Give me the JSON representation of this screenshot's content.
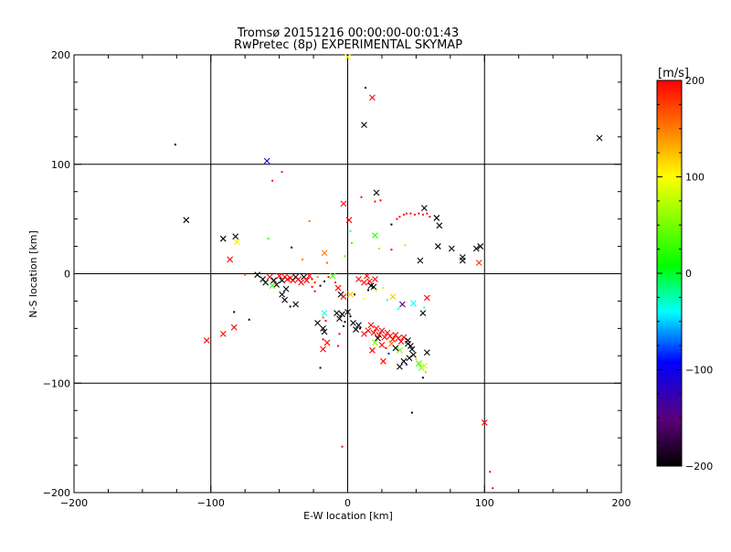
{
  "chart_data": {
    "type": "scatter",
    "title": "Tromsø 20151216 00:00:00-00:01:43",
    "subtitle": "RwPretec (8p) EXPERIMENTAL SKYMAP",
    "xlabel": "E-W location [km]",
    "ylabel": "N-S location [km]",
    "xlim": [
      -200,
      200
    ],
    "ylim": [
      -200,
      200
    ],
    "xticks": [
      -200,
      -100,
      0,
      100,
      200
    ],
    "yticks": [
      -200,
      -100,
      0,
      100,
      200
    ],
    "grid": true,
    "colorbar": {
      "label": "[m/s]",
      "range": [
        -200,
        200
      ],
      "ticks": [
        200,
        100,
        0,
        -100,
        -200
      ],
      "colormap": "black-purple-blue-cyan-green-yellow-orange-red"
    },
    "points": [
      {
        "x": 0,
        "y": 198,
        "v": 100,
        "m": "x"
      },
      {
        "x": 13,
        "y": 170,
        "v": -200,
        "m": "d"
      },
      {
        "x": 18,
        "y": 161,
        "v": 200,
        "m": "x"
      },
      {
        "x": 12,
        "y": 136,
        "v": -200,
        "m": "x"
      },
      {
        "x": -126,
        "y": 118,
        "v": -200,
        "m": "d"
      },
      {
        "x": 184,
        "y": 124,
        "v": -200,
        "m": "x"
      },
      {
        "x": -59,
        "y": 103,
        "v": -120,
        "m": "x"
      },
      {
        "x": -48,
        "y": 93,
        "v": 190,
        "m": "d"
      },
      {
        "x": -55,
        "y": 85,
        "v": 190,
        "m": "d"
      },
      {
        "x": -118,
        "y": 49,
        "v": -200,
        "m": "x"
      },
      {
        "x": -3,
        "y": 64,
        "v": 200,
        "m": "x"
      },
      {
        "x": 10,
        "y": 70,
        "v": 200,
        "m": "d"
      },
      {
        "x": 21,
        "y": 74,
        "v": -200,
        "m": "x"
      },
      {
        "x": 24,
        "y": 67,
        "v": 200,
        "m": "d"
      },
      {
        "x": 20,
        "y": 66,
        "v": 200,
        "m": "d"
      },
      {
        "x": 1,
        "y": 49,
        "v": 200,
        "m": "x"
      },
      {
        "x": -28,
        "y": 48,
        "v": 150,
        "m": "d"
      },
      {
        "x": 56,
        "y": 60,
        "v": -200,
        "m": "x"
      },
      {
        "x": 65,
        "y": 51,
        "v": -200,
        "m": "x"
      },
      {
        "x": 67,
        "y": 44,
        "v": -200,
        "m": "x"
      },
      {
        "x": 32,
        "y": 45,
        "v": -200,
        "m": "d"
      },
      {
        "x": 36,
        "y": 50,
        "v": 200,
        "m": "d"
      },
      {
        "x": 38,
        "y": 52,
        "v": 200,
        "m": "d"
      },
      {
        "x": 41,
        "y": 54,
        "v": 200,
        "m": "d"
      },
      {
        "x": 43,
        "y": 55,
        "v": 200,
        "m": "d"
      },
      {
        "x": 46,
        "y": 55,
        "v": 200,
        "m": "d"
      },
      {
        "x": 49,
        "y": 54,
        "v": 200,
        "m": "d"
      },
      {
        "x": 52,
        "y": 55,
        "v": 200,
        "m": "d"
      },
      {
        "x": 55,
        "y": 54,
        "v": 200,
        "m": "d"
      },
      {
        "x": 58,
        "y": 55,
        "v": 200,
        "m": "d"
      },
      {
        "x": 60,
        "y": 52,
        "v": 200,
        "m": "d"
      },
      {
        "x": -91,
        "y": 32,
        "v": -200,
        "m": "x"
      },
      {
        "x": -82,
        "y": 34,
        "v": -200,
        "m": "x"
      },
      {
        "x": -81,
        "y": 29,
        "v": 110,
        "m": "x"
      },
      {
        "x": -58,
        "y": 32,
        "v": 30,
        "m": "d"
      },
      {
        "x": -41,
        "y": 24,
        "v": -200,
        "m": "d"
      },
      {
        "x": 20,
        "y": 35,
        "v": 20,
        "m": "x"
      },
      {
        "x": 2,
        "y": 39,
        "v": -30,
        "m": "d"
      },
      {
        "x": 3,
        "y": 28,
        "v": 30,
        "m": "d"
      },
      {
        "x": 23,
        "y": 23,
        "v": 60,
        "m": "d"
      },
      {
        "x": 32,
        "y": 22,
        "v": 200,
        "m": "d"
      },
      {
        "x": 42,
        "y": 26,
        "v": 120,
        "m": "d"
      },
      {
        "x": 66,
        "y": 25,
        "v": -200,
        "m": "x"
      },
      {
        "x": 76,
        "y": 23,
        "v": -200,
        "m": "x"
      },
      {
        "x": 84,
        "y": 15,
        "v": -200,
        "m": "x"
      },
      {
        "x": 84,
        "y": 12,
        "v": -200,
        "m": "x"
      },
      {
        "x": 94,
        "y": 23,
        "v": -200,
        "m": "x"
      },
      {
        "x": 97,
        "y": 25,
        "v": -200,
        "m": "x"
      },
      {
        "x": 96,
        "y": 10,
        "v": 180,
        "m": "x"
      },
      {
        "x": 53,
        "y": 12,
        "v": -200,
        "m": "x"
      },
      {
        "x": -17,
        "y": 19,
        "v": 150,
        "m": "x"
      },
      {
        "x": -33,
        "y": 13,
        "v": 150,
        "m": "d"
      },
      {
        "x": -15,
        "y": 10,
        "v": 160,
        "m": "d"
      },
      {
        "x": -2,
        "y": 16,
        "v": 40,
        "m": "d"
      },
      {
        "x": -86,
        "y": 13,
        "v": 200,
        "m": "x"
      },
      {
        "x": -75,
        "y": -1,
        "v": 160,
        "m": "d"
      },
      {
        "x": -66,
        "y": -1,
        "v": -200,
        "m": "x"
      },
      {
        "x": -62,
        "y": -5,
        "v": -200,
        "m": "x"
      },
      {
        "x": -60,
        "y": -8,
        "v": -200,
        "m": "x"
      },
      {
        "x": -57,
        "y": -3,
        "v": 200,
        "m": "x"
      },
      {
        "x": -54,
        "y": -6,
        "v": -200,
        "m": "x"
      },
      {
        "x": -52,
        "y": -10,
        "v": -200,
        "m": "x"
      },
      {
        "x": -50,
        "y": -2,
        "v": 200,
        "m": "x"
      },
      {
        "x": -48,
        "y": -6,
        "v": -200,
        "m": "x"
      },
      {
        "x": -46,
        "y": -3,
        "v": 200,
        "m": "x"
      },
      {
        "x": -44,
        "y": -5,
        "v": 200,
        "m": "x"
      },
      {
        "x": -42,
        "y": -4,
        "v": 200,
        "m": "x"
      },
      {
        "x": -40,
        "y": -6,
        "v": 200,
        "m": "x"
      },
      {
        "x": -38,
        "y": -3,
        "v": -200,
        "m": "x"
      },
      {
        "x": -36,
        "y": -5,
        "v": 200,
        "m": "x"
      },
      {
        "x": -34,
        "y": -8,
        "v": 200,
        "m": "x"
      },
      {
        "x": -32,
        "y": -3,
        "v": -200,
        "m": "x"
      },
      {
        "x": -30,
        "y": -6,
        "v": 200,
        "m": "x"
      },
      {
        "x": -28,
        "y": -2,
        "v": 200,
        "m": "x"
      },
      {
        "x": -26,
        "y": -5,
        "v": 200,
        "m": "d"
      },
      {
        "x": -24,
        "y": -8,
        "v": 200,
        "m": "d"
      },
      {
        "x": -22,
        "y": -3,
        "v": 150,
        "m": "d"
      },
      {
        "x": -20,
        "y": -11,
        "v": -200,
        "m": "d"
      },
      {
        "x": -17,
        "y": -7,
        "v": -200,
        "m": "d"
      },
      {
        "x": -14,
        "y": -3,
        "v": 200,
        "m": "d"
      },
      {
        "x": -55,
        "y": -11,
        "v": 30,
        "m": "x"
      },
      {
        "x": -45,
        "y": -14,
        "v": -200,
        "m": "x"
      },
      {
        "x": -48,
        "y": -19,
        "v": -200,
        "m": "x"
      },
      {
        "x": -46,
        "y": -24,
        "v": -200,
        "m": "x"
      },
      {
        "x": -38,
        "y": -28,
        "v": -200,
        "m": "x"
      },
      {
        "x": -42,
        "y": -30,
        "v": -200,
        "m": "d"
      },
      {
        "x": -26,
        "y": -12,
        "v": 200,
        "m": "d"
      },
      {
        "x": -24,
        "y": -16,
        "v": 200,
        "m": "d"
      },
      {
        "x": -11,
        "y": -2,
        "v": 30,
        "m": "x"
      },
      {
        "x": -9,
        "y": -8,
        "v": 200,
        "m": "d"
      },
      {
        "x": -7,
        "y": -13,
        "v": 200,
        "m": "x"
      },
      {
        "x": -5,
        "y": -19,
        "v": -200,
        "m": "x"
      },
      {
        "x": -3,
        "y": -21,
        "v": 200,
        "m": "x"
      },
      {
        "x": 2,
        "y": -19,
        "v": 120,
        "m": "x"
      },
      {
        "x": 5,
        "y": -19,
        "v": -200,
        "m": "d"
      },
      {
        "x": 8,
        "y": -5,
        "v": 200,
        "m": "x"
      },
      {
        "x": 12,
        "y": -8,
        "v": 200,
        "m": "x"
      },
      {
        "x": 14,
        "y": -2,
        "v": 200,
        "m": "x"
      },
      {
        "x": 16,
        "y": -7,
        "v": 200,
        "m": "x"
      },
      {
        "x": 17,
        "y": -11,
        "v": -200,
        "m": "x"
      },
      {
        "x": 19,
        "y": -12,
        "v": -200,
        "m": "x"
      },
      {
        "x": 20,
        "y": -5,
        "v": 200,
        "m": "x"
      },
      {
        "x": 15,
        "y": -15,
        "v": -200,
        "m": "d"
      },
      {
        "x": 21,
        "y": -16,
        "v": 100,
        "m": "d"
      },
      {
        "x": 12,
        "y": -23,
        "v": 100,
        "m": "d"
      },
      {
        "x": 26,
        "y": -13,
        "v": 80,
        "m": "d"
      },
      {
        "x": 33,
        "y": -21,
        "v": 120,
        "m": "x"
      },
      {
        "x": 40,
        "y": -28,
        "v": -150,
        "m": "x"
      },
      {
        "x": 48,
        "y": -27,
        "v": -40,
        "m": "x"
      },
      {
        "x": 55,
        "y": -36,
        "v": -200,
        "m": "x"
      },
      {
        "x": 58,
        "y": -22,
        "v": 200,
        "m": "x"
      },
      {
        "x": 37,
        "y": -32,
        "v": -40,
        "m": "d"
      },
      {
        "x": 29,
        "y": -24,
        "v": -40,
        "m": "d"
      },
      {
        "x": 56,
        "y": -31,
        "v": -40,
        "m": "d"
      },
      {
        "x": -17,
        "y": -36,
        "v": -40,
        "m": "x"
      },
      {
        "x": -18,
        "y": -40,
        "v": 160,
        "m": "d"
      },
      {
        "x": -22,
        "y": -45,
        "v": -200,
        "m": "x"
      },
      {
        "x": -18,
        "y": -50,
        "v": -200,
        "m": "x"
      },
      {
        "x": -16,
        "y": -43,
        "v": 200,
        "m": "d"
      },
      {
        "x": -8,
        "y": -36,
        "v": -200,
        "m": "x"
      },
      {
        "x": -6,
        "y": -41,
        "v": -200,
        "m": "x"
      },
      {
        "x": -4,
        "y": -37,
        "v": -200,
        "m": "x"
      },
      {
        "x": -2,
        "y": -44,
        "v": -200,
        "m": "d"
      },
      {
        "x": 0,
        "y": -35,
        "v": -200,
        "m": "x"
      },
      {
        "x": 2,
        "y": -39,
        "v": -200,
        "m": "d"
      },
      {
        "x": 4,
        "y": -45,
        "v": -200,
        "m": "x"
      },
      {
        "x": 6,
        "y": -51,
        "v": -200,
        "m": "x"
      },
      {
        "x": 8,
        "y": -47,
        "v": -200,
        "m": "x"
      },
      {
        "x": -3,
        "y": -48,
        "v": -200,
        "m": "d"
      },
      {
        "x": -6,
        "y": -55,
        "v": 200,
        "m": "d"
      },
      {
        "x": -17,
        "y": -53,
        "v": -200,
        "m": "x"
      },
      {
        "x": -18,
        "y": -60,
        "v": 200,
        "m": "d"
      },
      {
        "x": -15,
        "y": -63,
        "v": 200,
        "m": "x"
      },
      {
        "x": -18,
        "y": -69,
        "v": 200,
        "m": "x"
      },
      {
        "x": -7,
        "y": -66,
        "v": 200,
        "m": "d"
      },
      {
        "x": 9,
        "y": -50,
        "v": -200,
        "m": "d"
      },
      {
        "x": 12,
        "y": -55,
        "v": 200,
        "m": "x"
      },
      {
        "x": 15,
        "y": -52,
        "v": 200,
        "m": "x"
      },
      {
        "x": 17,
        "y": -47,
        "v": 200,
        "m": "x"
      },
      {
        "x": 19,
        "y": -54,
        "v": 200,
        "m": "x"
      },
      {
        "x": 21,
        "y": -50,
        "v": 200,
        "m": "x"
      },
      {
        "x": 23,
        "y": -56,
        "v": 200,
        "m": "x"
      },
      {
        "x": 25,
        "y": -52,
        "v": 200,
        "m": "x"
      },
      {
        "x": 27,
        "y": -58,
        "v": 200,
        "m": "x"
      },
      {
        "x": 29,
        "y": -54,
        "v": 200,
        "m": "x"
      },
      {
        "x": 31,
        "y": -57,
        "v": 200,
        "m": "x"
      },
      {
        "x": 33,
        "y": -60,
        "v": 200,
        "m": "x"
      },
      {
        "x": 35,
        "y": -56,
        "v": 200,
        "m": "x"
      },
      {
        "x": 37,
        "y": -59,
        "v": 200,
        "m": "x"
      },
      {
        "x": 39,
        "y": -62,
        "v": 200,
        "m": "x"
      },
      {
        "x": 41,
        "y": -58,
        "v": 200,
        "m": "x"
      },
      {
        "x": 22,
        "y": -59,
        "v": -200,
        "m": "x"
      },
      {
        "x": 20,
        "y": -63,
        "v": 60,
        "m": "x"
      },
      {
        "x": 25,
        "y": -65,
        "v": 200,
        "m": "x"
      },
      {
        "x": 28,
        "y": -68,
        "v": 200,
        "m": "d"
      },
      {
        "x": 32,
        "y": -64,
        "v": 150,
        "m": "x"
      },
      {
        "x": 35,
        "y": -68,
        "v": -200,
        "m": "x"
      },
      {
        "x": 38,
        "y": -70,
        "v": 50,
        "m": "x"
      },
      {
        "x": 18,
        "y": -70,
        "v": 200,
        "m": "x"
      },
      {
        "x": 44,
        "y": -61,
        "v": -200,
        "m": "x"
      },
      {
        "x": 44,
        "y": -64,
        "v": -200,
        "m": "x"
      },
      {
        "x": 46,
        "y": -66,
        "v": -200,
        "m": "x"
      },
      {
        "x": 47,
        "y": -69,
        "v": -200,
        "m": "x"
      },
      {
        "x": 48,
        "y": -74,
        "v": -200,
        "m": "x"
      },
      {
        "x": 45,
        "y": -77,
        "v": -200,
        "m": "x"
      },
      {
        "x": 41,
        "y": -80,
        "v": -200,
        "m": "x"
      },
      {
        "x": 38,
        "y": -85,
        "v": -200,
        "m": "x"
      },
      {
        "x": 50,
        "y": -78,
        "v": 120,
        "m": "d"
      },
      {
        "x": 52,
        "y": -82,
        "v": 30,
        "m": "x"
      },
      {
        "x": 54,
        "y": -86,
        "v": 50,
        "m": "x"
      },
      {
        "x": 56,
        "y": -84,
        "v": 80,
        "m": "x"
      },
      {
        "x": 57,
        "y": -90,
        "v": 130,
        "m": "d"
      },
      {
        "x": 55,
        "y": -95,
        "v": -200,
        "m": "d"
      },
      {
        "x": 58,
        "y": -72,
        "v": -200,
        "m": "x"
      },
      {
        "x": 30,
        "y": -73,
        "v": -100,
        "m": "d"
      },
      {
        "x": 26,
        "y": -80,
        "v": 200,
        "m": "x"
      },
      {
        "x": 43,
        "y": -83,
        "v": -100,
        "m": "d"
      },
      {
        "x": -20,
        "y": -86,
        "v": -200,
        "m": "d"
      },
      {
        "x": -83,
        "y": -35,
        "v": -200,
        "m": "d"
      },
      {
        "x": -91,
        "y": -55,
        "v": 200,
        "m": "x"
      },
      {
        "x": -83,
        "y": -49,
        "v": 200,
        "m": "x"
      },
      {
        "x": -103,
        "y": -61,
        "v": 200,
        "m": "x"
      },
      {
        "x": -72,
        "y": -42,
        "v": -200,
        "m": "d"
      },
      {
        "x": 47,
        "y": -127,
        "v": -200,
        "m": "d"
      },
      {
        "x": -4,
        "y": -158,
        "v": 200,
        "m": "d"
      },
      {
        "x": 100,
        "y": -136,
        "v": 200,
        "m": "x"
      },
      {
        "x": 104,
        "y": -181,
        "v": 200,
        "m": "d"
      },
      {
        "x": 106,
        "y": -196,
        "v": 200,
        "m": "d"
      }
    ]
  }
}
